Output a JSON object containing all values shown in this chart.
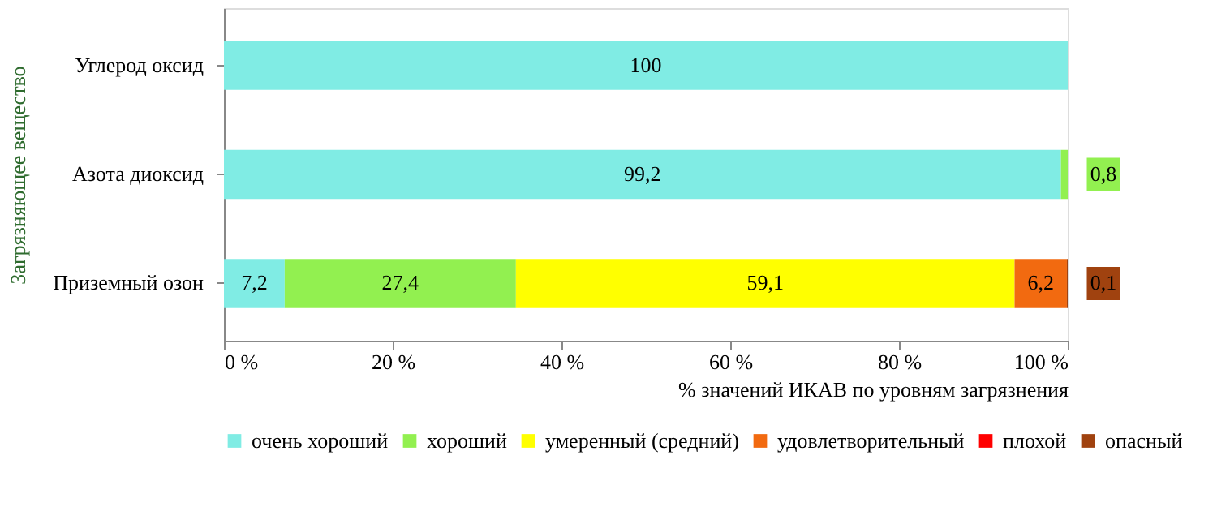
{
  "chart_data": {
    "type": "bar",
    "orientation": "horizontal",
    "stacked": true,
    "categories": [
      "Углерод оксид",
      "Азота диоксид",
      "Приземный озон"
    ],
    "series": [
      {
        "name": "очень хороший",
        "color": "#80ece4",
        "values": [
          100,
          99.2,
          7.2
        ],
        "value_labels": [
          "100",
          "99,2",
          "7,2"
        ]
      },
      {
        "name": "хороший",
        "color": "#92f050",
        "values": [
          null,
          0.8,
          27.4
        ],
        "value_labels": [
          null,
          "0,8",
          "27,4"
        ]
      },
      {
        "name": "умеренный (средний)",
        "color": "#ffff00",
        "values": [
          null,
          null,
          59.1
        ],
        "value_labels": [
          null,
          null,
          "59,1"
        ]
      },
      {
        "name": "удовлетворительный",
        "color": "#f26a10",
        "values": [
          null,
          null,
          6.2
        ],
        "value_labels": [
          null,
          null,
          "6,2"
        ]
      },
      {
        "name": "плохой",
        "color": "#ff0000",
        "values": [
          null,
          null,
          0
        ],
        "value_labels": [
          null,
          null,
          null
        ]
      },
      {
        "name": "опасный",
        "color": "#a0420f",
        "values": [
          null,
          null,
          0.1
        ],
        "value_labels": [
          null,
          null,
          "0,1"
        ]
      }
    ],
    "xlim": [
      0,
      100
    ],
    "xticks": [
      {
        "value": 0,
        "label": "0 %"
      },
      {
        "value": 20,
        "label": "20 %"
      },
      {
        "value": 40,
        "label": "40 %"
      },
      {
        "value": 60,
        "label": "60 %"
      },
      {
        "value": 80,
        "label": "80 %"
      },
      {
        "value": 100,
        "label": "100 %"
      }
    ],
    "xlabel": "% значений ИКАВ по уровням загрязнения",
    "ylabel": "Загрязняющее вещество",
    "legend": "bottom",
    "grid": false
  }
}
